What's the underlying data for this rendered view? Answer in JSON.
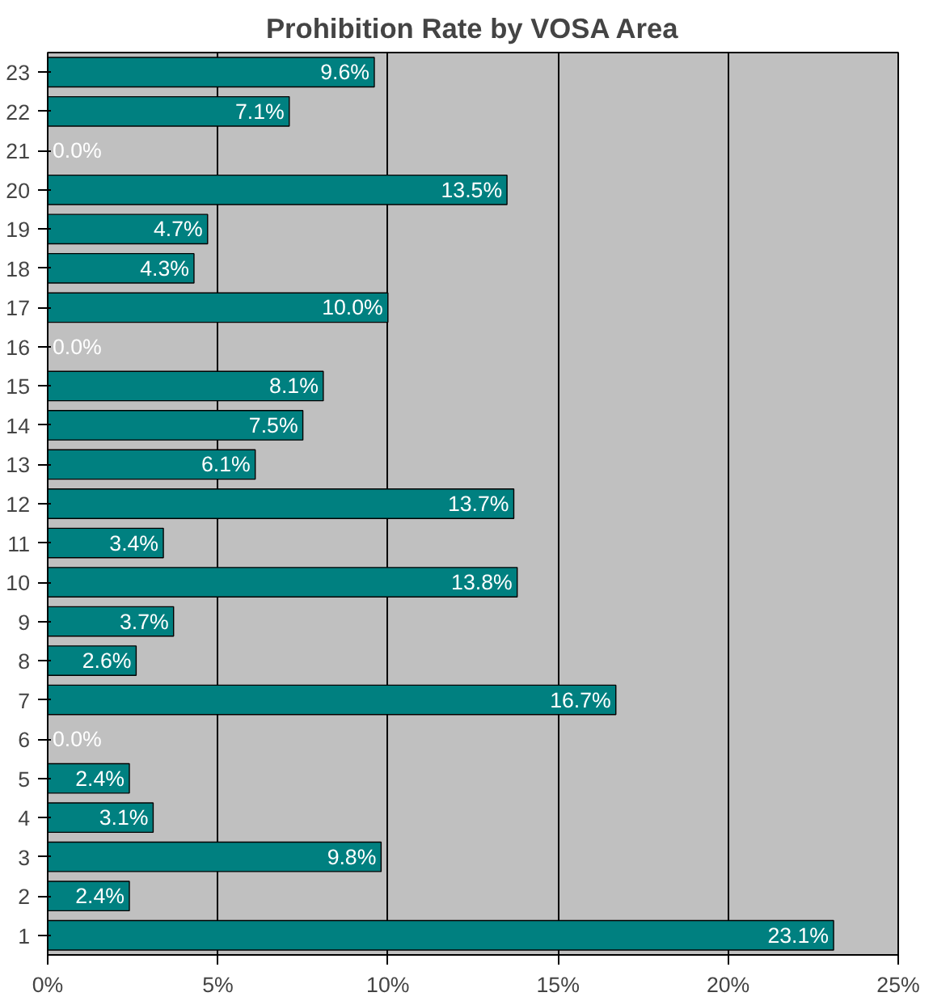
{
  "chart_data": {
    "type": "bar",
    "orientation": "horizontal",
    "title": "Prohibition Rate by VOSA Area",
    "categories": [
      "23",
      "22",
      "21",
      "20",
      "19",
      "18",
      "17",
      "16",
      "15",
      "14",
      "13",
      "12",
      "11",
      "10",
      "9",
      "8",
      "7",
      "6",
      "5",
      "4",
      "3",
      "2",
      "1"
    ],
    "values": [
      9.6,
      7.1,
      0.0,
      13.5,
      4.7,
      4.3,
      10.0,
      0.0,
      8.1,
      7.5,
      6.1,
      13.7,
      3.4,
      13.8,
      3.7,
      2.6,
      16.7,
      0.0,
      2.4,
      3.1,
      9.8,
      2.4,
      23.1
    ],
    "value_labels": [
      "9.6%",
      "7.1%",
      "0.0%",
      "13.5%",
      "4.7%",
      "4.3%",
      "10.0%",
      "0.0%",
      "8.1%",
      "7.5%",
      "6.1%",
      "13.7%",
      "3.4%",
      "13.8%",
      "3.7%",
      "2.6%",
      "16.7%",
      "0.0%",
      "2.4%",
      "3.1%",
      "9.8%",
      "2.4%",
      "23.1%"
    ],
    "color": "#008080",
    "xlim": [
      0,
      25
    ],
    "xticks": [
      {
        "value": 0,
        "label": "0%"
      },
      {
        "value": 5,
        "label": "5%"
      },
      {
        "value": 10,
        "label": "10%"
      },
      {
        "value": 15,
        "label": "15%"
      },
      {
        "value": 20,
        "label": "20%"
      },
      {
        "value": 25,
        "label": "25%"
      }
    ],
    "grid": "x"
  }
}
